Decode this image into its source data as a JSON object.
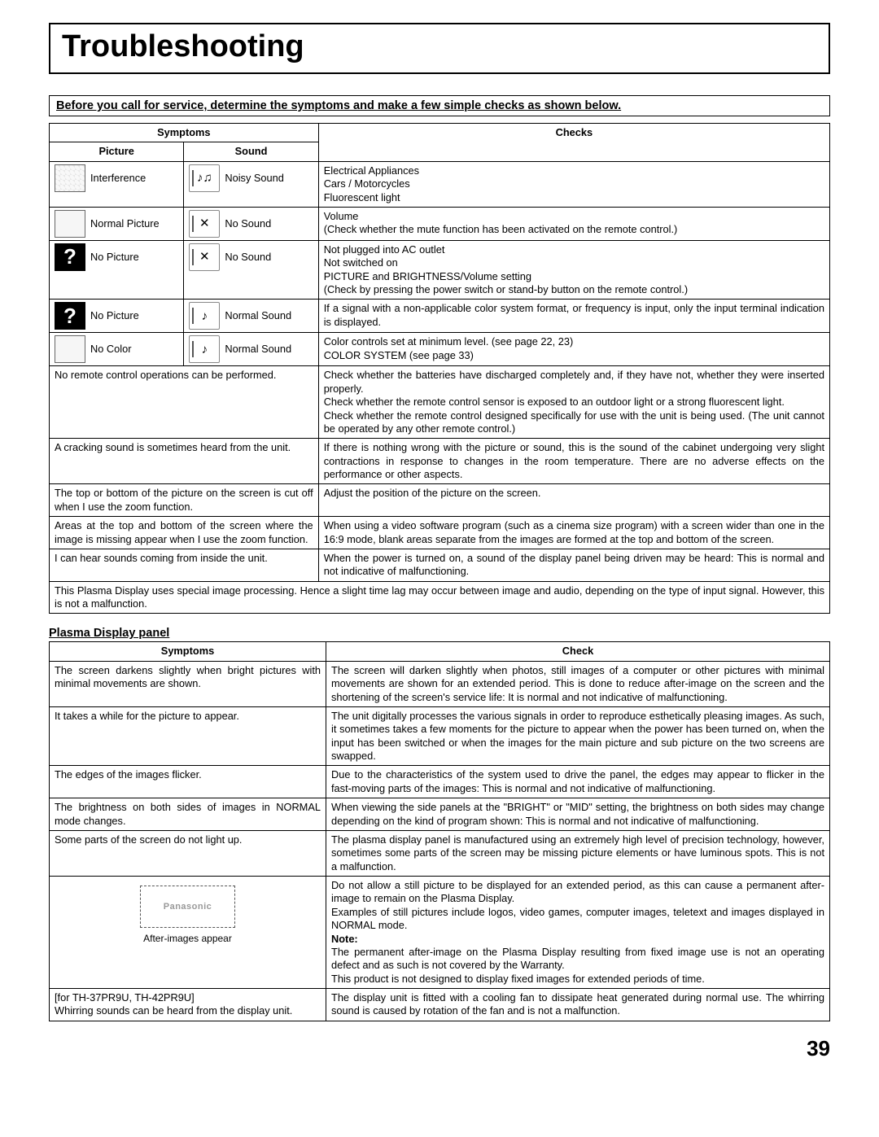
{
  "title": "Troubleshooting",
  "banner": "Before you call for service, determine the symptoms and make a few simple checks as shown below.",
  "headers": {
    "symptoms": "Symptoms",
    "picture": "Picture",
    "sound": "Sound",
    "checks": "Checks",
    "check": "Check"
  },
  "icon_rows": [
    {
      "pic_type": "tv",
      "pic": "Interference",
      "snd_glyph": "♪♫",
      "snd": "Noisy Sound",
      "chk": "Electrical Appliances\nCars / Motorcycles\nFluorescent light"
    },
    {
      "pic_type": "blank",
      "pic": "Normal Picture",
      "snd_glyph": "✕",
      "snd": "No Sound",
      "chk": "Volume\n(Check whether the mute function has been activated on the remote control.)"
    },
    {
      "pic_type": "q",
      "pic": "No Picture",
      "snd_glyph": "✕",
      "snd": "No Sound",
      "chk": "Not plugged into AC outlet\nNot switched on\nPICTURE and BRIGHTNESS/Volume setting\n(Check by pressing the power switch or stand-by button on the remote control.)"
    },
    {
      "pic_type": "q",
      "pic": "No Picture",
      "snd_glyph": "♪",
      "snd": "Normal Sound",
      "chk": "If a signal with a non-applicable color system format, or frequency is input, only the input terminal indication is displayed."
    },
    {
      "pic_type": "blank",
      "pic": "No Color",
      "snd_glyph": "♪",
      "snd": "Normal Sound",
      "chk": "Color controls set at minimum level. (see page 22, 23)\nCOLOR SYSTEM (see page 33)"
    }
  ],
  "span_rows": [
    {
      "sym": "No remote control operations can be performed.",
      "chk": "Check whether the batteries have discharged completely and, if they have not, whether they were inserted properly.\nCheck whether the remote control sensor is exposed to an outdoor light or a strong fluorescent light.\nCheck whether the remote control designed specifically for use with the unit is being used. (The unit cannot be operated by any other remote control.)"
    },
    {
      "sym": "A cracking sound is sometimes heard from the unit.",
      "chk": "If there is nothing wrong with the picture or sound, this is the sound of the cabinet undergoing very slight contractions in response to changes in the room temperature.  There are no adverse effects on the performance or other aspects."
    },
    {
      "sym": "The top or bottom of the picture on the screen is cut off when I use the zoom function.",
      "chk": "Adjust the position of the picture on the screen."
    },
    {
      "sym": "Areas at the top and bottom of the screen where the image is missing appear when I use the zoom function.",
      "chk": "When using a video software program (such as a cinema size program) with a screen wider than one in the 16:9 mode, blank areas separate from the images are formed at the top and bottom of the screen."
    },
    {
      "sym": "I can hear sounds coming from inside the unit.",
      "chk": "When the power is turned on, a sound of the display panel being driven may be heard: This is normal and not indicative of malfunctioning."
    }
  ],
  "full_row": "This Plasma Display uses special image processing. Hence a slight time lag may occur between image and audio, depending on the type of input signal. However, this is not a malfunction.",
  "panel_section_title": "Plasma Display panel",
  "panel_rows": [
    {
      "sym": "The screen darkens slightly when bright pictures with minimal movements are shown.",
      "chk": "The screen will darken slightly when photos, still images of a computer or other pictures with minimal movements are shown for an extended period. This is done to reduce after-image on the screen and the shortening of the screen's service life: It is normal and not indicative of malfunctioning."
    },
    {
      "sym": "It takes a while for the picture to appear.",
      "chk": "The unit digitally processes the various signals in order to reproduce esthetically pleasing images. As such, it sometimes takes a few moments for the picture to appear when the power has been turned on, when the input has been switched or when the images for the main picture and sub picture on the two screens are swapped."
    },
    {
      "sym": "The edges of the images flicker.",
      "chk": "Due to the characteristics of the system used to drive the panel, the edges may appear to flicker in the fast-moving parts of the images: This is normal and not indicative of malfunctioning."
    },
    {
      "sym": "The brightness on both sides of images in NORMAL mode changes.",
      "chk": "When viewing the side panels at the \"BRIGHT\" or \"MID\" setting, the brightness on both sides may change depending on the kind of program shown: This is normal and not indicative of malfunctioning."
    },
    {
      "sym": "Some parts of the screen do not light up.",
      "chk": "The plasma display panel is manufactured using an extremely high level of precision technology, however, sometimes some parts of the screen may be missing picture elements or have luminous spots. This is not a malfunction."
    }
  ],
  "after_image": {
    "logo": "Panasonic",
    "caption": "After-images appear",
    "note_label": "Note:",
    "chk_before": "Do not allow a still picture to be displayed for an extended period, as this can cause a permanent after-image to remain on the Plasma Display.\nExamples of still pictures include logos, video games, computer images, teletext and images displayed in NORMAL mode.",
    "chk_after": "The permanent after-image on the Plasma Display resulting from fixed image use is not an operating defect and as such is not covered by the Warranty.\nThis product is not designed to display fixed images for extended periods of time."
  },
  "whirring": {
    "sym": "[for TH-37PR9U, TH-42PR9U]\nWhirring sounds can be heard from the display unit.",
    "chk": "The display unit is fitted with a cooling fan to dissipate heat generated during normal use. The whirring sound is caused by rotation of the fan and is not a malfunction."
  },
  "page_number": "39"
}
